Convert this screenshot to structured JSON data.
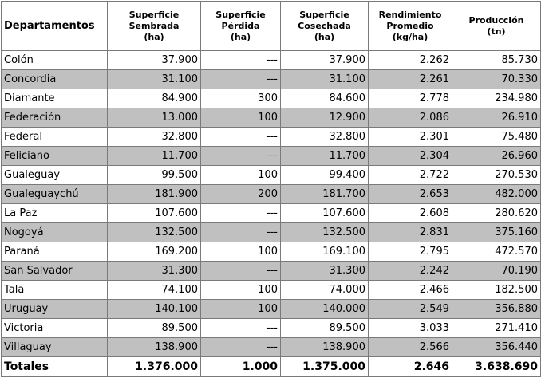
{
  "table": {
    "header": [
      [
        "Departamentos"
      ],
      [
        "Superficie",
        "Sembrada",
        "(ha)"
      ],
      [
        "Superficie",
        "Pérdida",
        "(ha)"
      ],
      [
        "Superficie",
        "Cosechada",
        "(ha)"
      ],
      [
        "Rendimiento",
        "Promedio",
        "(kg/ha)"
      ],
      [
        "Producción",
        "(tn)"
      ]
    ],
    "rows": [
      [
        "Colón",
        "37.900",
        "---",
        "37.900",
        "2.262",
        "85.730"
      ],
      [
        "Concordia",
        "31.100",
        "---",
        "31.100",
        "2.261",
        "70.330"
      ],
      [
        "Diamante",
        "84.900",
        "300",
        "84.600",
        "2.778",
        "234.980"
      ],
      [
        "Federación",
        "13.000",
        "100",
        "12.900",
        "2.086",
        "26.910"
      ],
      [
        "Federal",
        "32.800",
        "---",
        "32.800",
        "2.301",
        "75.480"
      ],
      [
        "Feliciano",
        "11.700",
        "---",
        "11.700",
        "2.304",
        "26.960"
      ],
      [
        "Gualeguay",
        "99.500",
        "100",
        "99.400",
        "2.722",
        "270.530"
      ],
      [
        "Gualeguaychú",
        "181.900",
        "200",
        "181.700",
        "2.653",
        "482.000"
      ],
      [
        "La Paz",
        "107.600",
        "---",
        "107.600",
        "2.608",
        "280.620"
      ],
      [
        "Nogoyá",
        "132.500",
        "---",
        "132.500",
        "2.831",
        "375.160"
      ],
      [
        "Paraná",
        "169.200",
        "100",
        "169.100",
        "2.795",
        "472.570"
      ],
      [
        "San Salvador",
        "31.300",
        "---",
        "31.300",
        "2.242",
        "70.190"
      ],
      [
        "Tala",
        "74.100",
        "100",
        "74.000",
        "2.466",
        "182.500"
      ],
      [
        "Uruguay",
        "140.100",
        "100",
        "140.000",
        "2.549",
        "356.880"
      ],
      [
        "Victoria",
        "89.500",
        "---",
        "89.500",
        "3.033",
        "271.410"
      ],
      [
        "Villaguay",
        "138.900",
        "---",
        "138.900",
        "2.566",
        "356.440"
      ]
    ],
    "totals": [
      "Totales",
      "1.376.000",
      "1.000",
      "1.375.000",
      "2.646",
      "3.638.690"
    ]
  }
}
